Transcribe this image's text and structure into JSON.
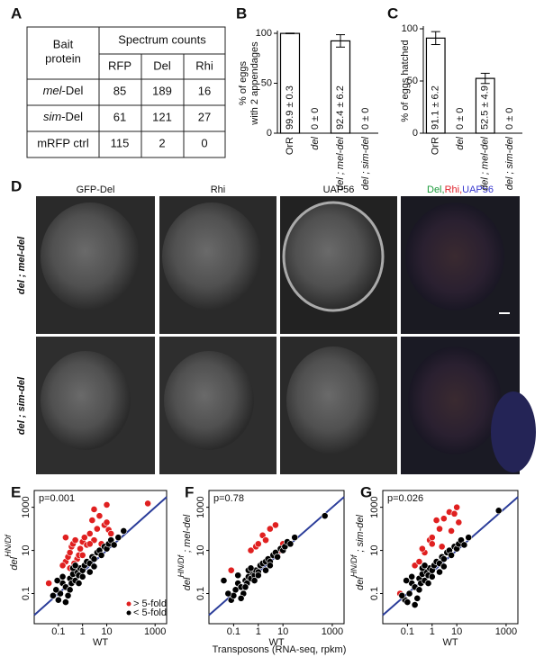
{
  "panel_letters": [
    "A",
    "B",
    "C",
    "D",
    "E",
    "F",
    "G"
  ],
  "table": {
    "bait_header": [
      "Bait",
      "protein"
    ],
    "group_header": "Spectrum counts",
    "columns": [
      "RFP",
      "Del",
      "Rhi"
    ],
    "rows": [
      [
        "mel-Del",
        85,
        189,
        16
      ],
      [
        "sim-Del",
        61,
        121,
        27
      ],
      [
        "mRFP ctrl",
        115,
        2,
        0
      ]
    ]
  },
  "images": {
    "columns": [
      "GFP-Del",
      "Rhi",
      "UAP56"
    ],
    "merge_title": [
      {
        "text": "Del,",
        "color": "#1a9a3a"
      },
      {
        "text": "Rhi,",
        "color": "#e0202a"
      },
      {
        "text": "UAP56",
        "color": "#3a3ad0"
      }
    ],
    "rows": [
      "del ; mel-del",
      "del ; sim-del"
    ]
  },
  "x_label_common": "Transposons (RNA-seq, rpkm)",
  "chart_data": [
    {
      "type": "bar",
      "ylabel": [
        "% of eggs",
        "with 2 appendages"
      ],
      "categories": [
        "OrR",
        "del",
        "del ; mel-del",
        "del ; sim-del"
      ],
      "values": [
        99.9,
        0,
        92.4,
        0
      ],
      "errors": [
        0.3,
        0,
        6.2,
        0
      ],
      "value_labels": [
        "99.9 ± 0.3",
        "0 ± 0",
        "92.4 ± 6.2",
        "0 ± 0"
      ],
      "ylim": [
        0,
        100
      ],
      "yticks": [
        0,
        50,
        100
      ],
      "color": "#ffffff"
    },
    {
      "type": "bar",
      "ylabel": [
        "% of eggs hatched"
      ],
      "categories": [
        "OrR",
        "del",
        "del ; mel-del",
        "del ; sim-del"
      ],
      "values": [
        91.1,
        0,
        52.5,
        0
      ],
      "errors": [
        6.2,
        0,
        4.9,
        0
      ],
      "value_labels": [
        "91.1 ± 6.2",
        "0 ± 0",
        "52.5 ± 4.9",
        "0 ± 0"
      ],
      "ylim": [
        0,
        100
      ],
      "yticks": [
        0,
        50,
        100
      ],
      "color": "#ffffff"
    },
    {
      "type": "scatter",
      "xlabel": "WT",
      "ylabel": {
        "text": "del",
        "superscript": "HN/Df"
      },
      "annotation": "p=0.001",
      "log_scale": true,
      "legend": "lower right",
      "xlim": [
        0.01,
        3000
      ],
      "ylim": [
        0.004,
        6000
      ],
      "xticks": [
        0.1,
        1,
        10,
        1000
      ],
      "yticks": [
        0.1,
        10,
        1000
      ],
      "series": [
        {
          "name": "> 5-fold",
          "color": "#e02020",
          "x": [
            0.04,
            0.2,
            0.25,
            0.3,
            0.35,
            0.4,
            0.5,
            0.6,
            0.8,
            1,
            1.2,
            1.5,
            2,
            2.5,
            3,
            4,
            5,
            6,
            8,
            10,
            12,
            0.15,
            0.3,
            0.7,
            1,
            0.45,
            500,
            3,
            10,
            0.2,
            2,
            15
          ],
          "y": [
            0.3,
            3,
            5,
            8,
            15,
            20,
            30,
            4,
            12,
            25,
            40,
            18,
            60,
            250,
            30,
            100,
            400,
            20,
            150,
            200,
            90,
            2,
            1.5,
            6,
            6,
            2.5,
            1500,
            800,
            1300,
            40,
            20,
            60
          ]
        },
        {
          "name": "< 5-fold",
          "color": "#000000",
          "x": [
            0.1,
            0.12,
            0.15,
            0.08,
            0.2,
            0.25,
            0.3,
            0.35,
            0.4,
            0.5,
            0.6,
            0.7,
            0.8,
            1,
            1.2,
            1.5,
            2,
            2.5,
            3,
            4,
            5,
            6,
            8,
            10,
            12,
            15,
            20,
            30,
            50,
            0.15,
            0.2,
            0.3,
            0.4,
            0.5,
            0.7,
            1,
            2,
            3,
            0.09,
            0.06
          ],
          "y": [
            0.05,
            0.1,
            0.3,
            0.15,
            0.2,
            0.08,
            0.5,
            0.3,
            0.8,
            0.4,
            1,
            0.7,
            1.5,
            1.2,
            2,
            3,
            2.5,
            5,
            4,
            8,
            10,
            6,
            15,
            12,
            20,
            30,
            18,
            40,
            80,
            0.6,
            0.04,
            0.15,
            1.5,
            2,
            0.3,
            0.6,
            1,
            1.8,
            0.4,
            0.08
          ]
        }
      ]
    },
    {
      "type": "scatter",
      "xlabel": "WT",
      "ylabel": {
        "text": "del",
        "superscript": "HN/Df",
        "suffix": " ; mel-del"
      },
      "annotation": "p=0.78",
      "log_scale": true,
      "xlim": [
        0.01,
        3000
      ],
      "ylim": [
        0.004,
        6000
      ],
      "xticks": [
        0.1,
        1,
        10,
        1000
      ],
      "yticks": [
        0.1,
        10,
        1000
      ],
      "series": [
        {
          "color": "#e02020",
          "x": [
            0.08,
            0.5,
            0.8,
            1,
            1.5,
            2,
            3,
            5,
            8,
            10
          ],
          "y": [
            1.2,
            10,
            15,
            20,
            50,
            30,
            100,
            150,
            10,
            20
          ]
        },
        {
          "color": "#000000",
          "x": [
            0.04,
            0.08,
            0.1,
            0.12,
            0.15,
            0.2,
            0.25,
            0.3,
            0.35,
            0.4,
            0.5,
            0.6,
            0.7,
            0.8,
            1,
            1.2,
            1.5,
            2,
            2.5,
            3,
            4,
            5,
            6,
            8,
            10,
            12,
            15,
            20,
            30,
            500,
            0.15,
            0.2,
            0.3,
            0.4,
            0.5,
            0.7,
            1,
            2,
            3,
            0.06
          ],
          "y": [
            0.4,
            0.05,
            0.08,
            0.15,
            0.3,
            0.2,
            0.1,
            0.4,
            0.3,
            0.6,
            0.5,
            0.9,
            0.7,
            1.2,
            1,
            2,
            2.5,
            3,
            4,
            3,
            6,
            8,
            5,
            12,
            10,
            15,
            25,
            20,
            40,
            400,
            0.7,
            0.06,
            0.2,
            1.2,
            1.5,
            0.4,
            0.7,
            1.2,
            2,
            0.1
          ]
        }
      ]
    },
    {
      "type": "scatter",
      "xlabel": "WT",
      "ylabel": {
        "text": "del",
        "superscript": "HN/Df",
        "suffix": " ; sim-del"
      },
      "annotation": "p=0.026",
      "log_scale": true,
      "xlim": [
        0.01,
        3000
      ],
      "ylim": [
        0.004,
        6000
      ],
      "xticks": [
        0.1,
        1,
        10,
        1000
      ],
      "yticks": [
        0.1,
        10,
        1000
      ],
      "series": [
        {
          "color": "#e02020",
          "x": [
            0.05,
            0.2,
            0.3,
            0.5,
            0.8,
            1,
            1.5,
            2,
            2.5,
            3,
            5,
            8,
            10,
            12,
            0.4,
            1,
            6
          ],
          "y": [
            0.1,
            2,
            3,
            8,
            30,
            40,
            250,
            100,
            15,
            300,
            600,
            500,
            1000,
            200,
            12,
            20,
            80
          ]
        },
        {
          "color": "#000000",
          "x": [
            0.08,
            0.1,
            0.12,
            0.15,
            0.2,
            0.25,
            0.3,
            0.35,
            0.4,
            0.5,
            0.6,
            0.7,
            0.8,
            1,
            1.2,
            1.5,
            2,
            2.5,
            3,
            4,
            5,
            6,
            8,
            10,
            12,
            15,
            20,
            30,
            500,
            0.15,
            0.2,
            0.3,
            0.4,
            0.5,
            0.7,
            1,
            2,
            3,
            0.09,
            0.06
          ],
          "y": [
            0.05,
            0.04,
            0.1,
            0.3,
            0.2,
            0.06,
            0.5,
            0.3,
            0.8,
            0.4,
            1,
            0.7,
            1.5,
            1.2,
            2,
            3,
            2.5,
            5,
            4,
            8,
            10,
            6,
            15,
            12,
            20,
            30,
            18,
            40,
            700,
            0.6,
            0.03,
            0.15,
            1.5,
            2,
            0.3,
            0.6,
            1,
            1.8,
            0.4,
            0.08
          ]
        }
      ]
    }
  ]
}
